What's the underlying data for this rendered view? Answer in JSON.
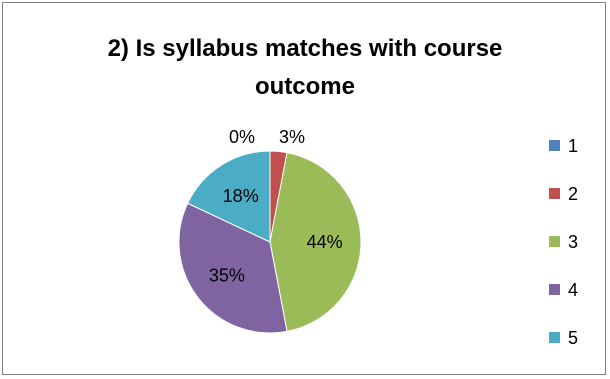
{
  "chart_data": {
    "type": "pie",
    "title_line1": "2) Is syllabus matches with course",
    "title_line2": "outcome",
    "categories": [
      "1",
      "2",
      "3",
      "4",
      "5"
    ],
    "values": [
      0,
      3,
      44,
      35,
      18
    ],
    "data_labels": [
      "0%",
      "3%",
      "44%",
      "35%",
      "18%"
    ],
    "colors": [
      "#4f81bd",
      "#c0504d",
      "#9bbb59",
      "#8064a2",
      "#4bacc6"
    ],
    "legend_position": "right"
  }
}
